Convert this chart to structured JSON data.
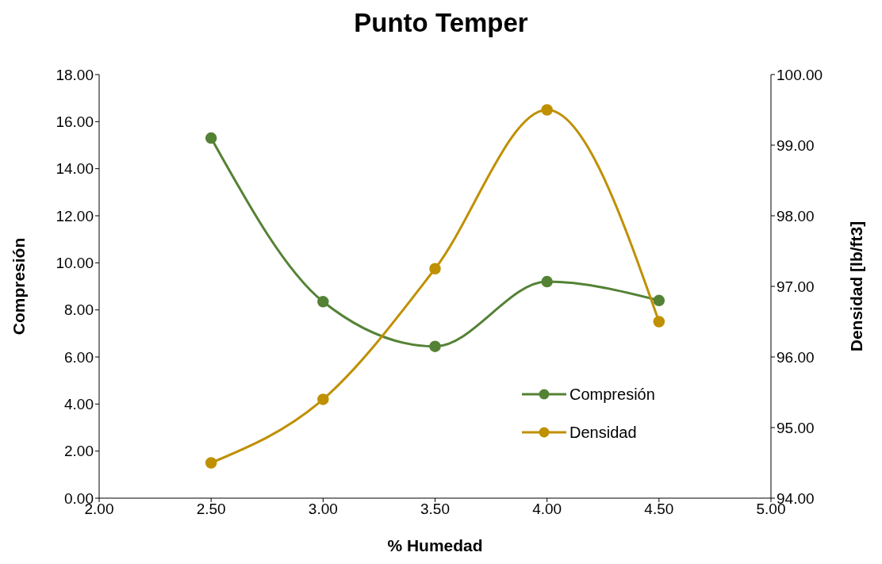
{
  "chart_data": {
    "type": "line",
    "title": "Punto Temper",
    "xlabel": "% Humedad",
    "ylabel": "Compresión",
    "y2label": "Densidad [lb/ft3]",
    "x": [
      2.5,
      3.0,
      3.5,
      4.0,
      4.5
    ],
    "series": [
      {
        "name": "Compresión",
        "color": "#548235",
        "values": [
          15.3,
          8.35,
          6.45,
          9.2,
          8.4
        ]
      },
      {
        "name": "Densidad",
        "color": "#bf9000",
        "axis": "y2",
        "values": [
          94.5,
          95.4,
          97.25,
          99.5,
          96.5
        ]
      }
    ],
    "xlim": [
      2,
      5
    ],
    "xticks": [
      {
        "value": 2,
        "label": "2.00"
      },
      {
        "value": 2.5,
        "label": "2.50"
      },
      {
        "value": 3,
        "label": "3.00"
      },
      {
        "value": 3.5,
        "label": "3.50"
      },
      {
        "value": 4,
        "label": "4.00"
      },
      {
        "value": 4.5,
        "label": "4.50"
      },
      {
        "value": 5,
        "label": "5.00"
      }
    ],
    "ylim": [
      0,
      18
    ],
    "yticks": [
      {
        "value": 0,
        "label": "0.00"
      },
      {
        "value": 2,
        "label": "2.00"
      },
      {
        "value": 4,
        "label": "4.00"
      },
      {
        "value": 6,
        "label": "6.00"
      },
      {
        "value": 8,
        "label": "8.00"
      },
      {
        "value": 10,
        "label": "10.00"
      },
      {
        "value": 12,
        "label": "12.00"
      },
      {
        "value": 14,
        "label": "14.00"
      },
      {
        "value": 16,
        "label": "16.00"
      },
      {
        "value": 18,
        "label": "18.00"
      }
    ],
    "y2lim": [
      94,
      100
    ],
    "y2ticks": [
      {
        "value": 94,
        "label": "94.00"
      },
      {
        "value": 95,
        "label": "95.00"
      },
      {
        "value": 96,
        "label": "96.00"
      },
      {
        "value": 97,
        "label": "97.00"
      },
      {
        "value": 98,
        "label": "98.00"
      },
      {
        "value": 99,
        "label": "99.00"
      },
      {
        "value": 100,
        "label": "100.00"
      }
    ],
    "grid": false,
    "legend": "right",
    "marker": "circle",
    "line_style": "solid"
  }
}
